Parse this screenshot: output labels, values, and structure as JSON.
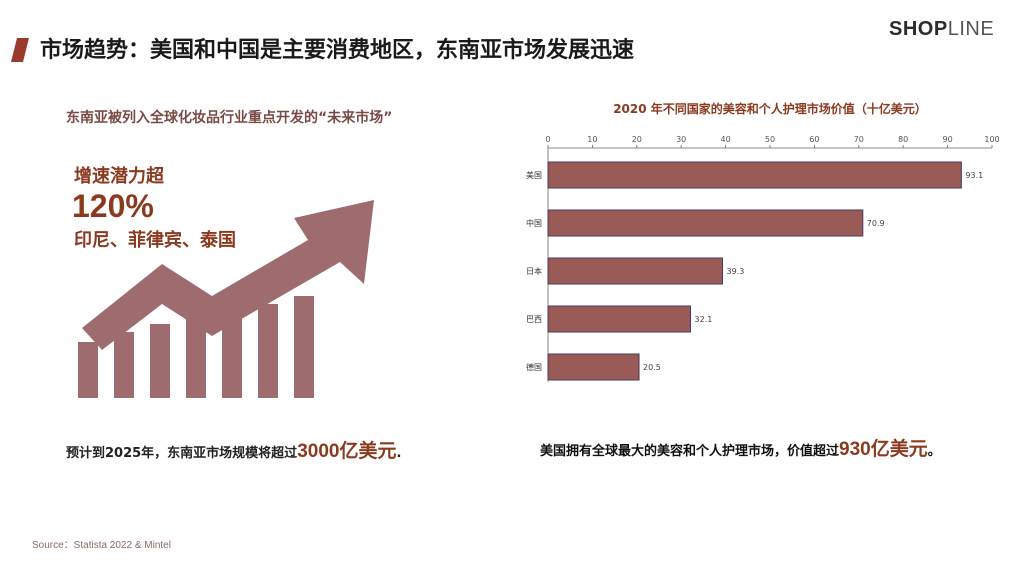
{
  "header": {
    "title": "市场趋势：美国和中国是主要消费地区，东南亚市场发展迅速",
    "brand_bold": "SH",
    "brand_o": "O",
    "brand_bold2": "P",
    "brand_thin": "LINE"
  },
  "left": {
    "subtitle": "东南亚被列入全球化妆品行业重点开发的“未来市场”",
    "growth_label": "增速潜力超",
    "growth_value": "120%",
    "growth_countries": "印尼、菲律宾、泰国",
    "note_prefix": "预计到2025年，东南亚市场规模将超过",
    "note_highlight": "3000亿美元",
    "note_suffix": "."
  },
  "right": {
    "note_prefix": "美国拥有全球最大的美容和个人护理市场，价值超过",
    "note_highlight": "930亿美元",
    "note_suffix": "。"
  },
  "source": "Source：Statista 2022 & Mintel",
  "colors": {
    "bar": "#9a5a55",
    "accent": "#9b3a2e",
    "arrow": "#9e6c6f",
    "highlight": "#8b3a20"
  },
  "chart_data": {
    "type": "bar",
    "orientation": "horizontal",
    "title": "2020 年不同国家的美容和个人护理市场价值（十亿美元）",
    "categories": [
      "美国",
      "中国",
      "日本",
      "巴西",
      "德国"
    ],
    "values": [
      93.1,
      70.9,
      39.3,
      32.1,
      20.5
    ],
    "value_labels": [
      "93.1",
      "70.9",
      "39.3",
      "32.1",
      "20.5"
    ],
    "xlim": [
      0,
      100
    ],
    "xticks": [
      0,
      10,
      20,
      30,
      40,
      50,
      60,
      70,
      80,
      90,
      100
    ],
    "xtick_labels": [
      "0",
      "10",
      "20",
      "30",
      "40",
      "50",
      "60",
      "70",
      "80",
      "90",
      "100"
    ],
    "xlabel": "",
    "ylabel": "",
    "grid": false,
    "legend": "none"
  }
}
